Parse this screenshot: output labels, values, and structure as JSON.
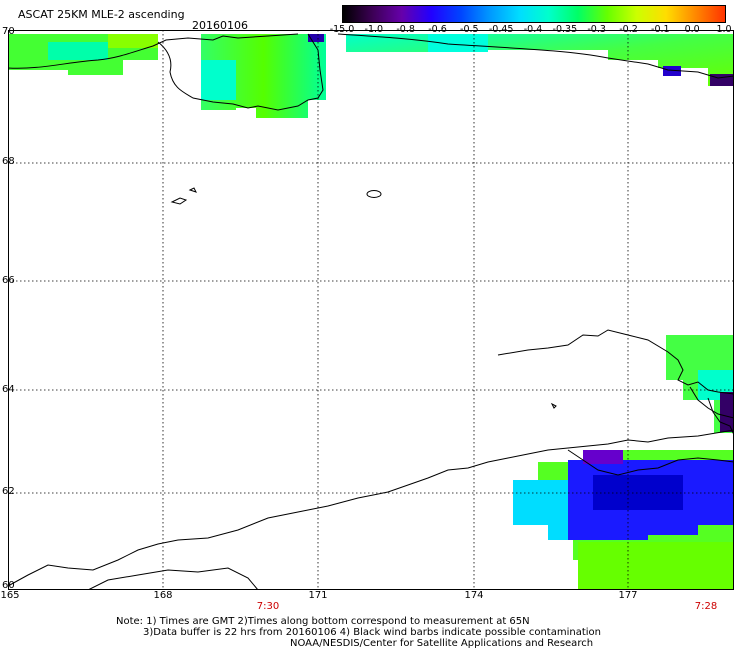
{
  "header": {
    "title": "ASCAT 25KM MLE-2 ascending",
    "date": "20160106"
  },
  "colorbar": {
    "labels": [
      "-15.0",
      "-1.0",
      "-0.8",
      "-0.6",
      "-0.5",
      "-0.45",
      "-0.4",
      "-0.35",
      "-0.3",
      "-0.2",
      "-0.1",
      "0.0",
      "1.0"
    ],
    "colors": [
      "#000000",
      "#3c0055",
      "#6600aa",
      "#2200ff",
      "#0044ff",
      "#0099ff",
      "#00ddff",
      "#00ffcc",
      "#00ff66",
      "#66ff00",
      "#ccff00",
      "#ffdd00",
      "#ff8800",
      "#ff3300"
    ]
  },
  "axes": {
    "lat_labels": [
      "70",
      "68",
      "66",
      "64",
      "62",
      "60"
    ],
    "lon_labels": [
      "165",
      "168",
      "171",
      "174",
      "177"
    ],
    "time_labels": [
      "7:30",
      "7:28"
    ]
  },
  "notes": {
    "line1": "Note: 1) Times are GMT 2)Times along bottom correspond to measurement at 65N",
    "line2": "3)Data buffer is 22 hrs from 20160106 4) Black wind barbs indicate possible contamination",
    "line3": "NOAA/NESDIS/Center for Satellite Applications and Research"
  },
  "colors": {
    "grid": "#000000",
    "time_label": "#cc0000",
    "background": "#ffffff"
  }
}
